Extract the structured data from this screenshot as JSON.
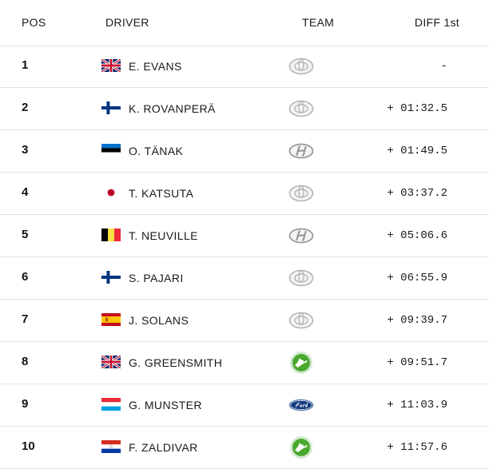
{
  "columns": {
    "pos": "POS",
    "driver": "DRIVER",
    "team": "TEAM",
    "diff": "DIFF 1st"
  },
  "rows": [
    {
      "pos": "1",
      "flag": "gb-flag-icon",
      "driver": "E. EVANS",
      "team": "toyota-logo-icon",
      "diff": "-"
    },
    {
      "pos": "2",
      "flag": "fi-flag-icon",
      "driver": "K. ROVANPERÄ",
      "team": "toyota-logo-icon",
      "diff": "+ 01:32.5"
    },
    {
      "pos": "3",
      "flag": "ee-flag-icon",
      "driver": "O. TÄNAK",
      "team": "hyundai-logo-icon",
      "diff": "+ 01:49.5"
    },
    {
      "pos": "4",
      "flag": "jp-flag-icon",
      "driver": "T. KATSUTA",
      "team": "toyota-logo-icon",
      "diff": "+ 03:37.2"
    },
    {
      "pos": "5",
      "flag": "be-flag-icon",
      "driver": "T. NEUVILLE",
      "team": "hyundai-logo-icon",
      "diff": "+ 05:06.6"
    },
    {
      "pos": "6",
      "flag": "fi-flag-icon",
      "driver": "S. PAJARI",
      "team": "toyota-logo-icon",
      "diff": "+ 06:55.9"
    },
    {
      "pos": "7",
      "flag": "es-flag-icon",
      "driver": "J. SOLANS",
      "team": "toyota-logo-icon",
      "diff": "+ 09:39.7"
    },
    {
      "pos": "8",
      "flag": "gb-flag-icon",
      "driver": "G. GREENSMITH",
      "team": "skoda-logo-icon",
      "diff": "+ 09:51.7"
    },
    {
      "pos": "9",
      "flag": "lu-flag-icon",
      "driver": "G. MUNSTER",
      "team": "ford-logo-icon",
      "diff": "+ 11:03.9"
    },
    {
      "pos": "10",
      "flag": "py-flag-icon",
      "driver": "F. ZALDIVAR",
      "team": "skoda-logo-icon",
      "diff": "+ 11:57.6"
    }
  ],
  "colors": {
    "divider": "#e3e3e3",
    "text": "#1a1a1a",
    "skoda_green": "#4ba82e",
    "ford_blue": "#133a7c"
  }
}
